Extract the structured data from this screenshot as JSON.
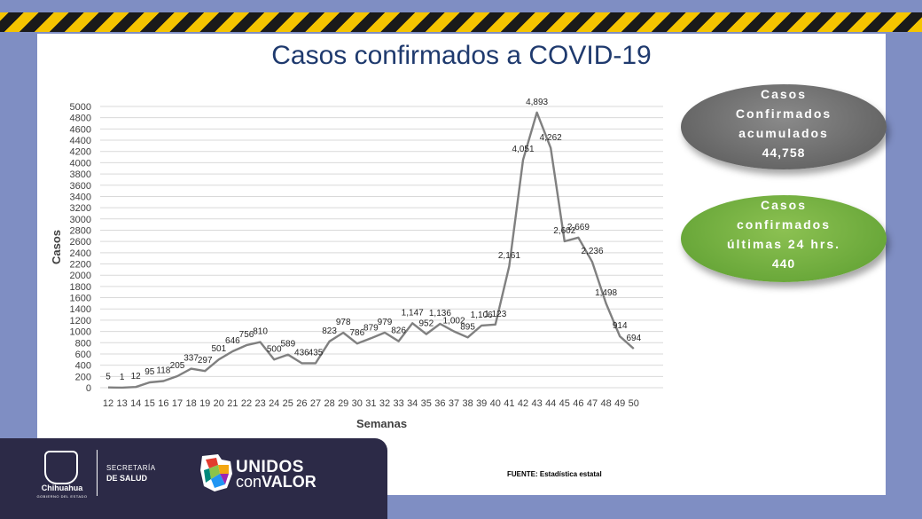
{
  "title": "Casos confirmados a COVID-19",
  "chart_data": {
    "type": "line",
    "title": "Casos confirmados a COVID-19",
    "xlabel": "Semanas",
    "ylabel": "Casos",
    "ylim": [
      0,
      5000
    ],
    "ytick_step": 200,
    "grid": true,
    "x": [
      "12",
      "13",
      "14",
      "15",
      "16",
      "17",
      "18",
      "19",
      "20",
      "21",
      "22",
      "23",
      "24",
      "25",
      "26",
      "27",
      "28",
      "29",
      "30",
      "31",
      "32",
      "33",
      "34",
      "35",
      "36",
      "37",
      "38",
      "39",
      "40",
      "41",
      "42",
      "43",
      "44",
      "45",
      "46",
      "47",
      "48",
      "49",
      "50"
    ],
    "values": [
      5,
      1,
      12,
      95,
      118,
      205,
      337,
      297,
      501,
      646,
      756,
      810,
      500,
      589,
      436,
      435,
      823,
      978,
      786,
      879,
      979,
      826,
      1147,
      952,
      1136,
      1002,
      895,
      1106,
      1123,
      2161,
      4051,
      4893,
      4262,
      2602,
      2669,
      2236,
      1498,
      914,
      694
    ],
    "labels": [
      "5",
      "1",
      "12",
      "95",
      "118",
      "205",
      "337",
      "297",
      "501",
      "646",
      "756",
      "810",
      "500",
      "589",
      "436",
      "435",
      "823",
      "978",
      "786",
      "879",
      "979",
      "826",
      "1,147",
      "952",
      "1,136",
      "1,002",
      "895",
      "1,106",
      "1,123",
      "2,161",
      "4,051",
      "4,893",
      "4,262",
      "2,602",
      "2,669",
      "2,236",
      "1,498",
      "914",
      "694"
    ],
    "line_color": "#808080"
  },
  "accumulated": {
    "line1": "Casos",
    "line2": "Confirmados",
    "line3": "acumulados",
    "value": "44,758"
  },
  "last24": {
    "line1": "Casos",
    "line2": "confirmados",
    "line3": "últimas 24 hrs.",
    "value": "440"
  },
  "footer": {
    "gob_name": "Chihuahua",
    "gob_sub": "GOBIERNO DEL ESTADO",
    "secretaria": "SECRETARÍA",
    "salud": "DE SALUD",
    "unidos": "UNIDOS",
    "con": "con",
    "valor": "VALOR",
    "source": "FUENTE: Estadística estatal"
  }
}
